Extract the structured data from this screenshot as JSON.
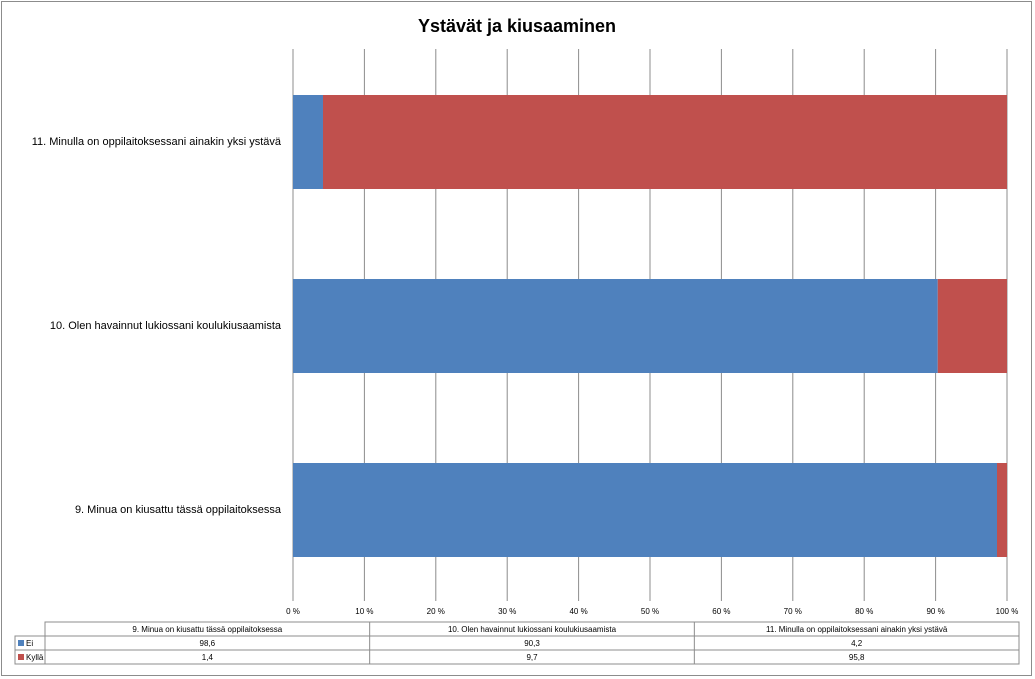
{
  "chart_data": {
    "type": "bar",
    "orientation": "horizontal",
    "stacked": "percent",
    "title": "Ystävät ja kiusaaminen",
    "categories": [
      "9. Minua on kiusattu tässä oppilaitoksessa",
      "10. Olen havainnut lukiossani koulukiusaamista",
      "11. Minulla on oppilaitoksessani ainakin yksi ystävä"
    ],
    "series": [
      {
        "name": "Ei",
        "color": "#4f81bd",
        "values": [
          98.6,
          90.3,
          4.2
        ],
        "value_labels": [
          "98,6",
          "90,3",
          "4,2"
        ]
      },
      {
        "name": "Kyllä",
        "color": "#c0504d",
        "values": [
          1.4,
          9.7,
          95.8
        ],
        "value_labels": [
          "1,4",
          "9,7",
          "95,8"
        ]
      }
    ],
    "xlim": [
      0,
      100
    ],
    "xticks": [
      "0 %",
      "10 %",
      "20 %",
      "30 %",
      "40 %",
      "50 %",
      "60 %",
      "70 %",
      "80 %",
      "90 %",
      "100 %"
    ],
    "grid": "vertical",
    "legend": "data-table-below"
  }
}
